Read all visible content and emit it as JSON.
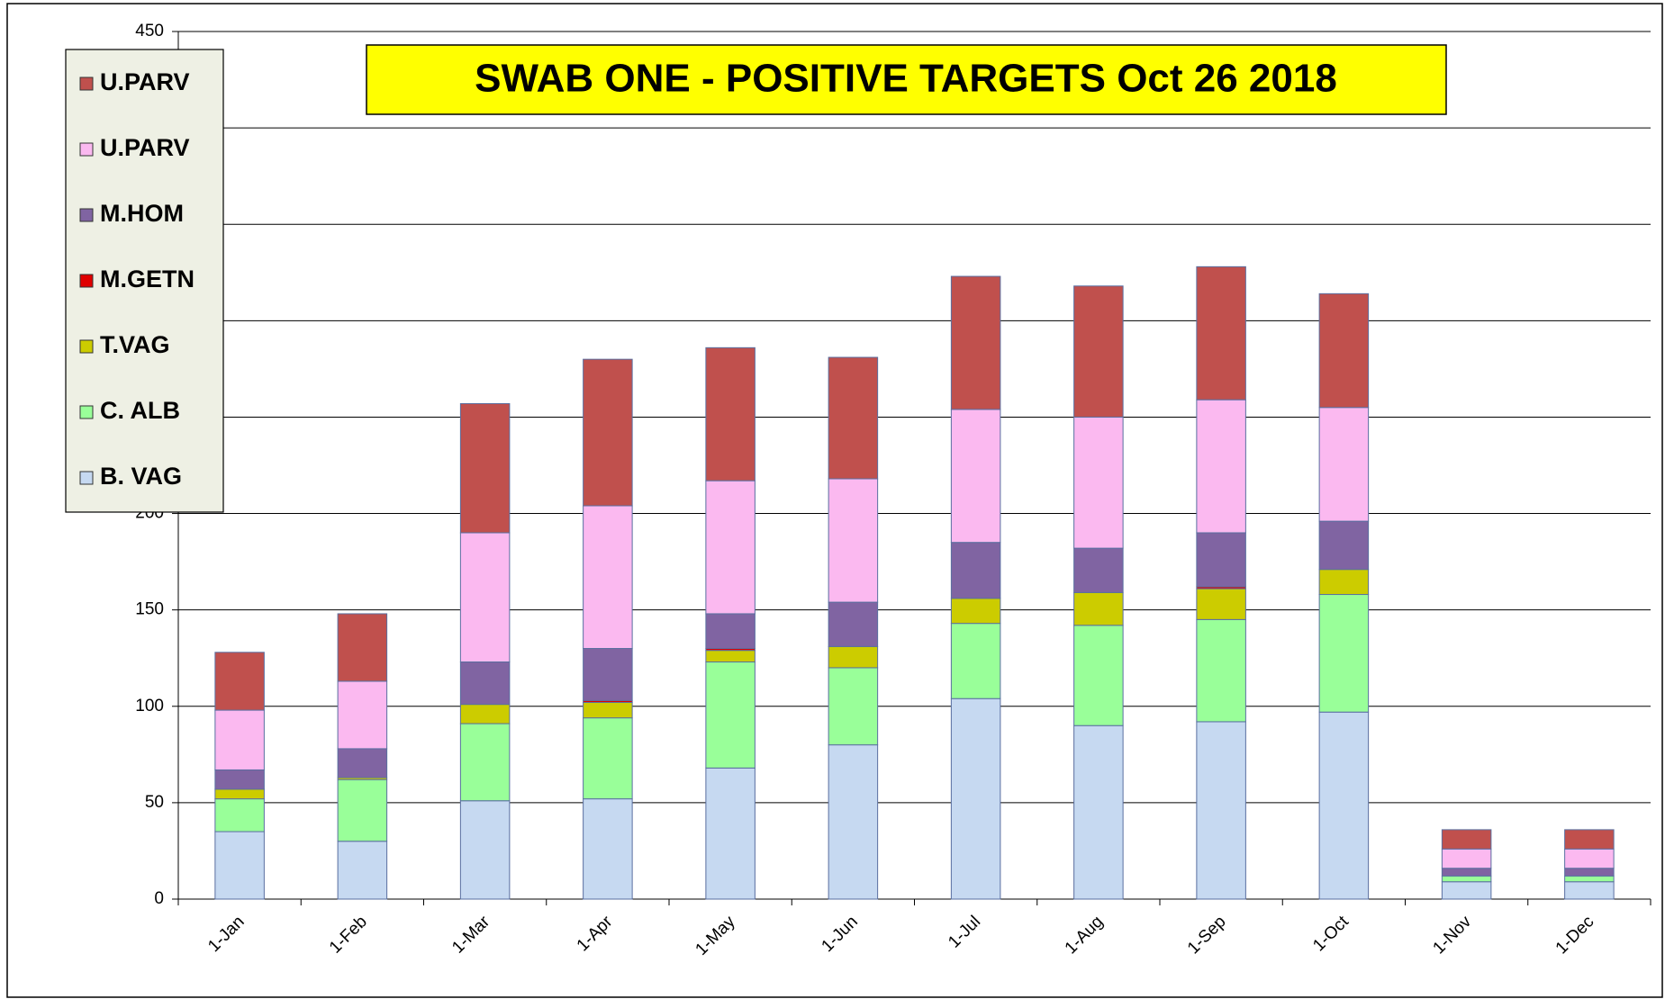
{
  "chart_data": {
    "type": "stacked-bar",
    "title": "SWAB ONE - POSITIVE TARGETS Oct 26 2018",
    "categories": [
      "1-Jan",
      "1-Feb",
      "1-Mar",
      "1-Apr",
      "1-May",
      "1-Jun",
      "1-Jul",
      "1-Aug",
      "1-Sep",
      "1-Oct",
      "1-Nov",
      "1-Dec"
    ],
    "series": [
      {
        "name": "B. VAG",
        "color": "#c6d9f1",
        "values": [
          35,
          30,
          51,
          52,
          68,
          80,
          104,
          90,
          92,
          97,
          9,
          9
        ]
      },
      {
        "name": "C. ALB",
        "color": "#99ff99",
        "values": [
          17,
          32,
          40,
          42,
          55,
          40,
          39,
          52,
          53,
          61,
          3,
          3
        ]
      },
      {
        "name": "T.VAG",
        "color": "#cccc00",
        "values": [
          5,
          1,
          10,
          8,
          6,
          11,
          13,
          17,
          16,
          13,
          0,
          0
        ]
      },
      {
        "name": "M.GETN",
        "color": "#e00000",
        "values": [
          0,
          0,
          0,
          1,
          1,
          0,
          0,
          0,
          1,
          0,
          0,
          0
        ]
      },
      {
        "name": "M.HOM",
        "color": "#8064a2",
        "values": [
          10,
          15,
          22,
          27,
          18,
          23,
          29,
          23,
          28,
          25,
          4,
          4
        ]
      },
      {
        "name": "U.PARV",
        "color": "#fbb9f0",
        "values": [
          31,
          35,
          67,
          74,
          69,
          64,
          69,
          68,
          69,
          59,
          10,
          10
        ]
      },
      {
        "name": "U.PARV",
        "color": "#c0504d",
        "values": [
          30,
          35,
          67,
          76,
          69,
          63,
          69,
          68,
          69,
          59,
          10,
          10
        ]
      }
    ],
    "ylim": [
      0,
      450
    ],
    "yticks": [
      0,
      50,
      100,
      150,
      200,
      250,
      300,
      350,
      400,
      450
    ],
    "grid": true
  }
}
